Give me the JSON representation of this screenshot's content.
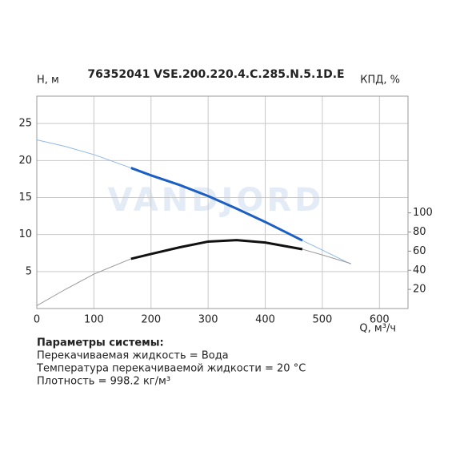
{
  "chart_data": {
    "type": "line",
    "title": "76352041 VSE.200.220.4.C.285.N.5.1D.E",
    "watermark": "VANDJORD",
    "y_label": "H, м",
    "y2_label": "КПД, %",
    "x_label": "Q, м³/ч",
    "x": [
      0,
      50,
      100,
      165,
      200,
      250,
      300,
      350,
      400,
      465,
      500,
      550
    ],
    "series": [
      {
        "color": "#8fb8ea",
        "width": 1,
        "axis": "y",
        "values": [
          22.8,
          21.9,
          20.8,
          19.0,
          18.0,
          16.7,
          15.2,
          13.5,
          11.7,
          9.2,
          7.9,
          6.0
        ]
      },
      {
        "color": "#1c5fc4",
        "width": 3,
        "axis": "y",
        "values": [
          null,
          null,
          null,
          19.0,
          18.0,
          16.7,
          15.2,
          13.5,
          11.7,
          9.2,
          null,
          null
        ]
      },
      {
        "color": "#999999",
        "width": 1,
        "axis": "y2",
        "values": [
          3,
          20,
          36,
          52,
          57,
          64,
          70,
          71.5,
          69,
          62,
          56,
          47
        ]
      },
      {
        "color": "#111111",
        "width": 3,
        "axis": "y2",
        "values": [
          null,
          null,
          null,
          52,
          57,
          64,
          70,
          71.5,
          69,
          62,
          null,
          null
        ]
      }
    ],
    "xlim": [
      0,
      650
    ],
    "xticks": [
      0,
      100,
      200,
      300,
      400,
      500,
      600
    ],
    "ylim": [
      0,
      28.7
    ],
    "yticks": [
      5,
      10,
      15,
      20,
      25
    ],
    "y2lim": [
      0,
      222
    ],
    "y2ticks": [
      20,
      40,
      60,
      80,
      100
    ],
    "grid": true
  },
  "system_params": {
    "title": "Параметры системы:",
    "lines": [
      "Перекачиваемая жидкость = Вода",
      "Температура перекачиваемой жидкости = 20 °C",
      "Плотность = 998.2 кг/м³"
    ]
  }
}
